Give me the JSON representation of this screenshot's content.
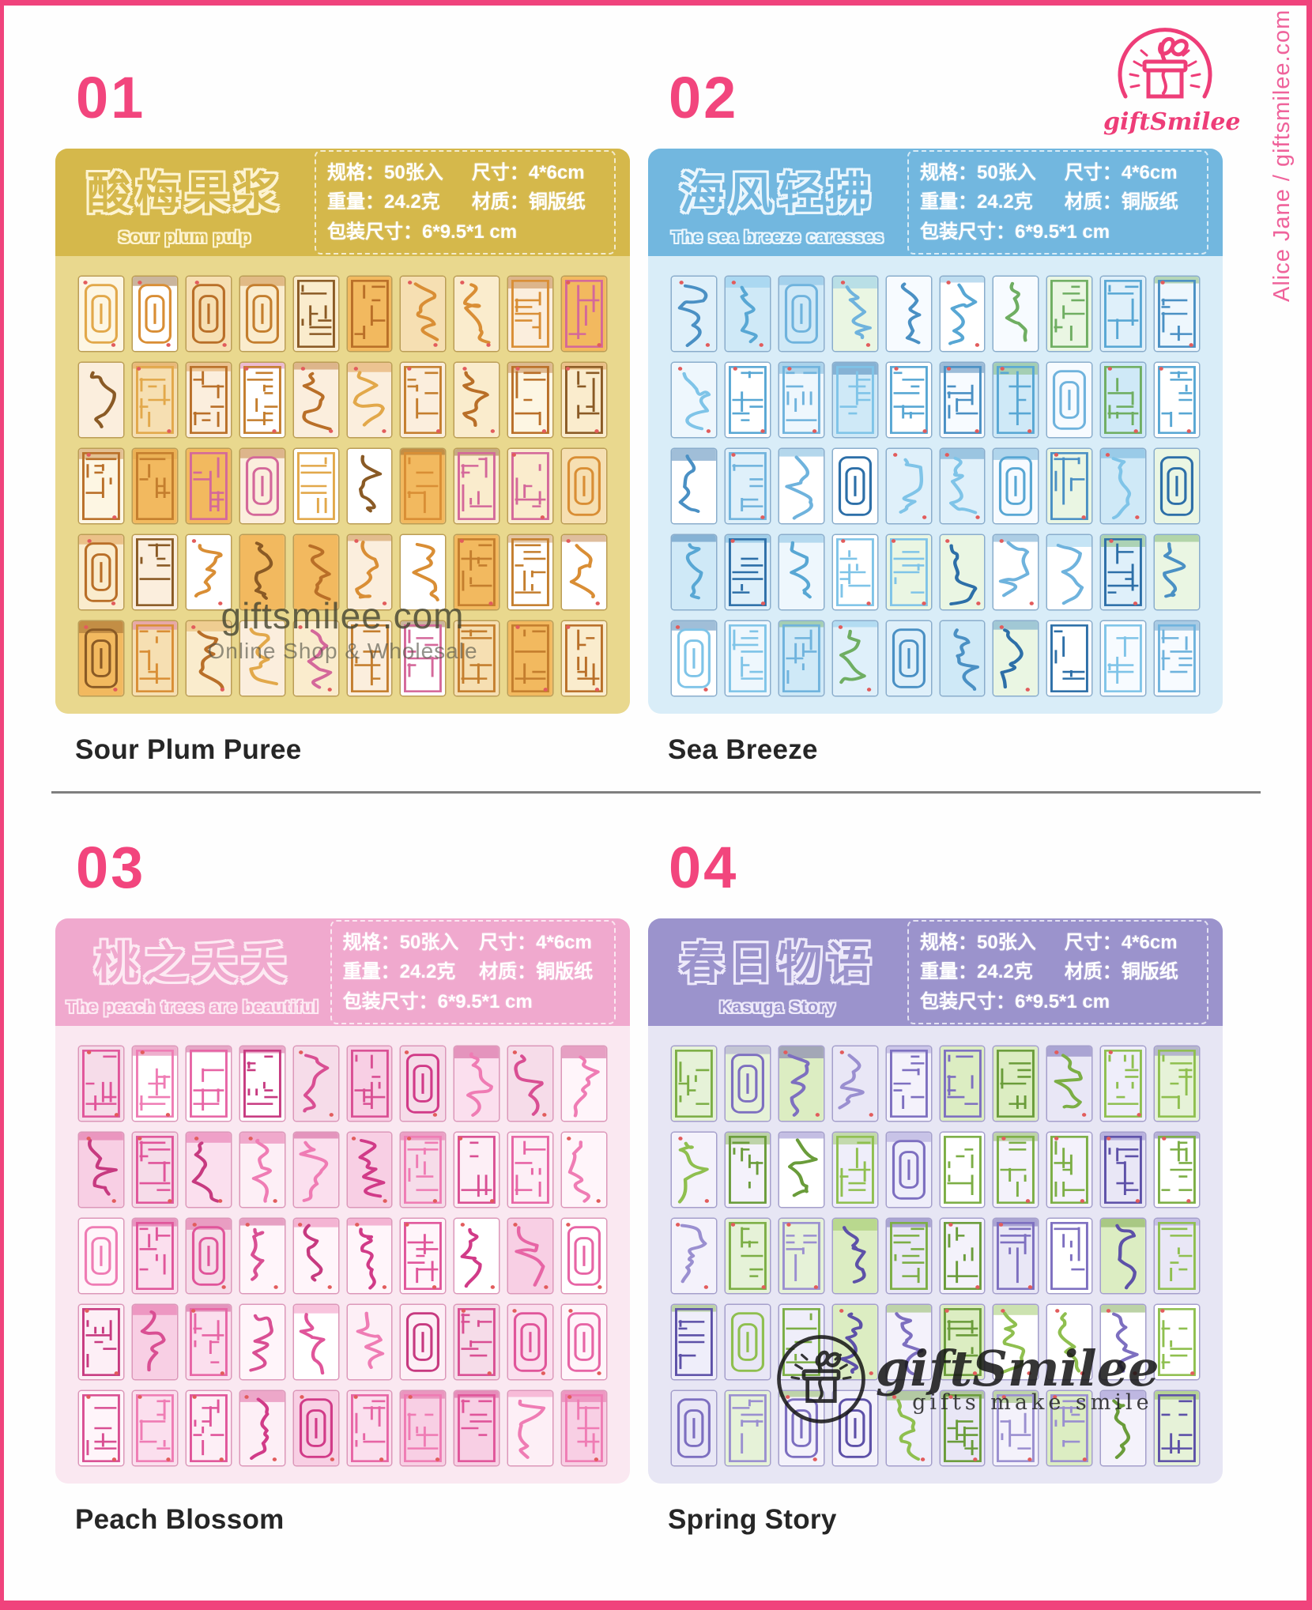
{
  "page": {
    "border_color": "#f0437c",
    "divider_color": "#7f7f7f",
    "background": "#fefefe"
  },
  "brand": {
    "logo_text": "giftSmilee",
    "logo_color": "#ee3d78",
    "side_credit": "Alice Jane / giftsmilee.com",
    "accent_pink": "#f2457d"
  },
  "watermarks": {
    "card1_line1": "giftsmilee.com",
    "card1_line2": "Online Shop & Wholesale",
    "card4_logo_text": "giftSmilee",
    "card4_tagline": "gifts make smile"
  },
  "specs": {
    "size_label": "规格：",
    "size_value": "50张入",
    "dim_label": "尺寸：",
    "dim_value": "4*6cm",
    "weight_label": "重量：",
    "weight_value": "24.2克",
    "material_label": "材质：",
    "material_value": "铜版纸",
    "package_label": "包装尺寸：",
    "package_value": "6*9.5*1 cm"
  },
  "grid": {
    "columns": 10,
    "rows": 5
  },
  "cards": [
    {
      "number": "01",
      "title_cn": "酸梅果浆",
      "title_en": "Sour plum pulp",
      "product_name": "Sour Plum Puree",
      "colors": {
        "header": "#d5b84b",
        "body": "#e9d88e",
        "outline": "#fdf3d0",
        "tile_border": "rgba(150,110,40,0.55)",
        "tile_bgs": [
          "#fdf6e3",
          "#faeccd",
          "#f6dfb2",
          "#f2b95f",
          "#ffffff",
          "#fbeedd"
        ],
        "tile_lines": [
          "#b96f28",
          "#8a5a25",
          "#d98e35",
          "#c47e2e",
          "#e2a84a",
          "#d4689a"
        ]
      }
    },
    {
      "number": "02",
      "title_cn": "海风轻拂",
      "title_en": "The sea breeze caresses",
      "product_name": "Sea Breeze",
      "colors": {
        "header": "#72b7df",
        "body": "#d9edf8",
        "outline": "#eaf6fd",
        "tile_border": "rgba(60,110,160,0.5)",
        "tile_bgs": [
          "#ffffff",
          "#eef7fd",
          "#dff0fa",
          "#cfe9f7",
          "#eaf6e3",
          "#f7fbff"
        ],
        "tile_lines": [
          "#4a90c4",
          "#2d6fa8",
          "#6fb3dd",
          "#58a7d4",
          "#7fc4e8",
          "#6fae62"
        ]
      }
    },
    {
      "number": "03",
      "title_cn": "桃之夭夭",
      "title_en": "The peach trees are beautiful",
      "product_name": "Peach Blossom",
      "colors": {
        "header": "#f0a9ce",
        "body": "#fae8f1",
        "outline": "#fdeaf3",
        "tile_border": "rgba(190,70,130,0.5)",
        "tile_bgs": [
          "#ffffff",
          "#fdeff6",
          "#fbdfee",
          "#f8cfe4",
          "#fff5fa",
          "#f6dce9"
        ],
        "tile_lines": [
          "#e0559a",
          "#d13b88",
          "#ef7cb4",
          "#e765a5",
          "#c73a80",
          "#d94f93"
        ]
      }
    },
    {
      "number": "04",
      "title_cn": "春日物语",
      "title_en": "Kasuga Story",
      "product_name": "Spring Story",
      "colors": {
        "header": "#9b93cc",
        "body": "#e7e6f4",
        "outline": "#eeeafa",
        "tile_border": "rgba(110,100,170,0.55)",
        "tile_bgs": [
          "#ffffff",
          "#efeefa",
          "#e6f2d8",
          "#dcedc2",
          "#e9e7f6",
          "#f4f2fb"
        ],
        "tile_lines": [
          "#7d6fc0",
          "#5d51a8",
          "#8fbf4f",
          "#6a9c3a",
          "#9a8fd0",
          "#7cae45"
        ]
      }
    }
  ]
}
